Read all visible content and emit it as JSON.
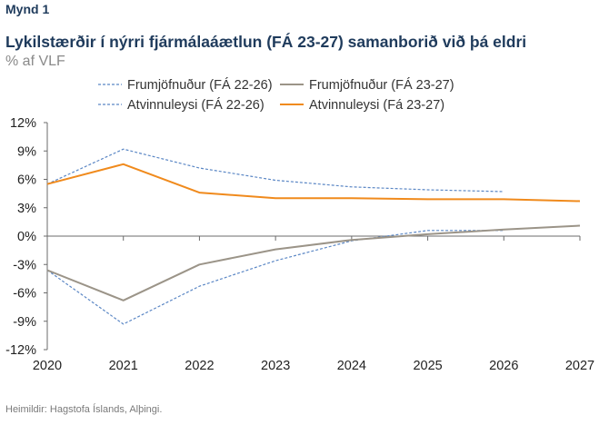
{
  "figure_label": "Mynd 1",
  "title": "Lykilstærðir í nýrri fjármálaáætlun (FÁ 23-27) samanborið við þá eldri",
  "subtitle": "% af VLF",
  "source": "Heimildir: Hagstofa Íslands, Alþingi.",
  "colors": {
    "frum_old": "#5b87c5",
    "frum_new": "#9b9488",
    "atv_old": "#5b87c5",
    "atv_new": "#f08a1c",
    "axis": "#6b6b6b",
    "title": "#1f3b5c"
  },
  "chart_data": {
    "type": "line",
    "x": [
      2020,
      2021,
      2022,
      2023,
      2024,
      2025,
      2026,
      2027
    ],
    "x_tick_labels": [
      "2020",
      "2021",
      "2022",
      "2023",
      "2024",
      "2025",
      "2026",
      "2027"
    ],
    "y_ticks": [
      12,
      9,
      6,
      3,
      0,
      -3,
      -6,
      -9,
      -12
    ],
    "y_tick_labels": [
      "12%",
      "9%",
      "6%",
      "3%",
      "0%",
      "-3%",
      "-6%",
      "-9%",
      "-12%"
    ],
    "ylim": [
      -12,
      12
    ],
    "xlim": [
      2020,
      2027
    ],
    "series": [
      {
        "name": "Frumjöfnuður (FÁ 22-26)",
        "style": "dashed",
        "color": "#5b87c5",
        "x": [
          2020,
          2021,
          2022,
          2023,
          2024,
          2025,
          2026
        ],
        "values": [
          -3.6,
          -9.3,
          -5.3,
          -2.6,
          -0.5,
          0.6,
          0.6
        ]
      },
      {
        "name": "Frumjöfnuður (FÁ 23-27)",
        "style": "solid",
        "color": "#9b9488",
        "x": [
          2020,
          2021,
          2022,
          2023,
          2024,
          2025,
          2026,
          2027
        ],
        "values": [
          -3.6,
          -6.8,
          -3.0,
          -1.4,
          -0.4,
          0.2,
          0.7,
          1.1
        ]
      },
      {
        "name": "Atvinnuleysi (FÁ 22-26)",
        "style": "dashed",
        "color": "#5b87c5",
        "x": [
          2020,
          2021,
          2022,
          2023,
          2024,
          2025,
          2026
        ],
        "values": [
          5.5,
          9.2,
          7.2,
          5.9,
          5.2,
          4.9,
          4.7
        ]
      },
      {
        "name": "Atvinnuleysi (Fá 23-27)",
        "style": "solid",
        "color": "#f08a1c",
        "x": [
          2020,
          2021,
          2022,
          2023,
          2024,
          2025,
          2026,
          2027
        ],
        "values": [
          5.5,
          7.6,
          4.6,
          4.0,
          4.0,
          3.9,
          3.9,
          3.7
        ]
      }
    ],
    "grid": false,
    "legend_position": "top"
  }
}
